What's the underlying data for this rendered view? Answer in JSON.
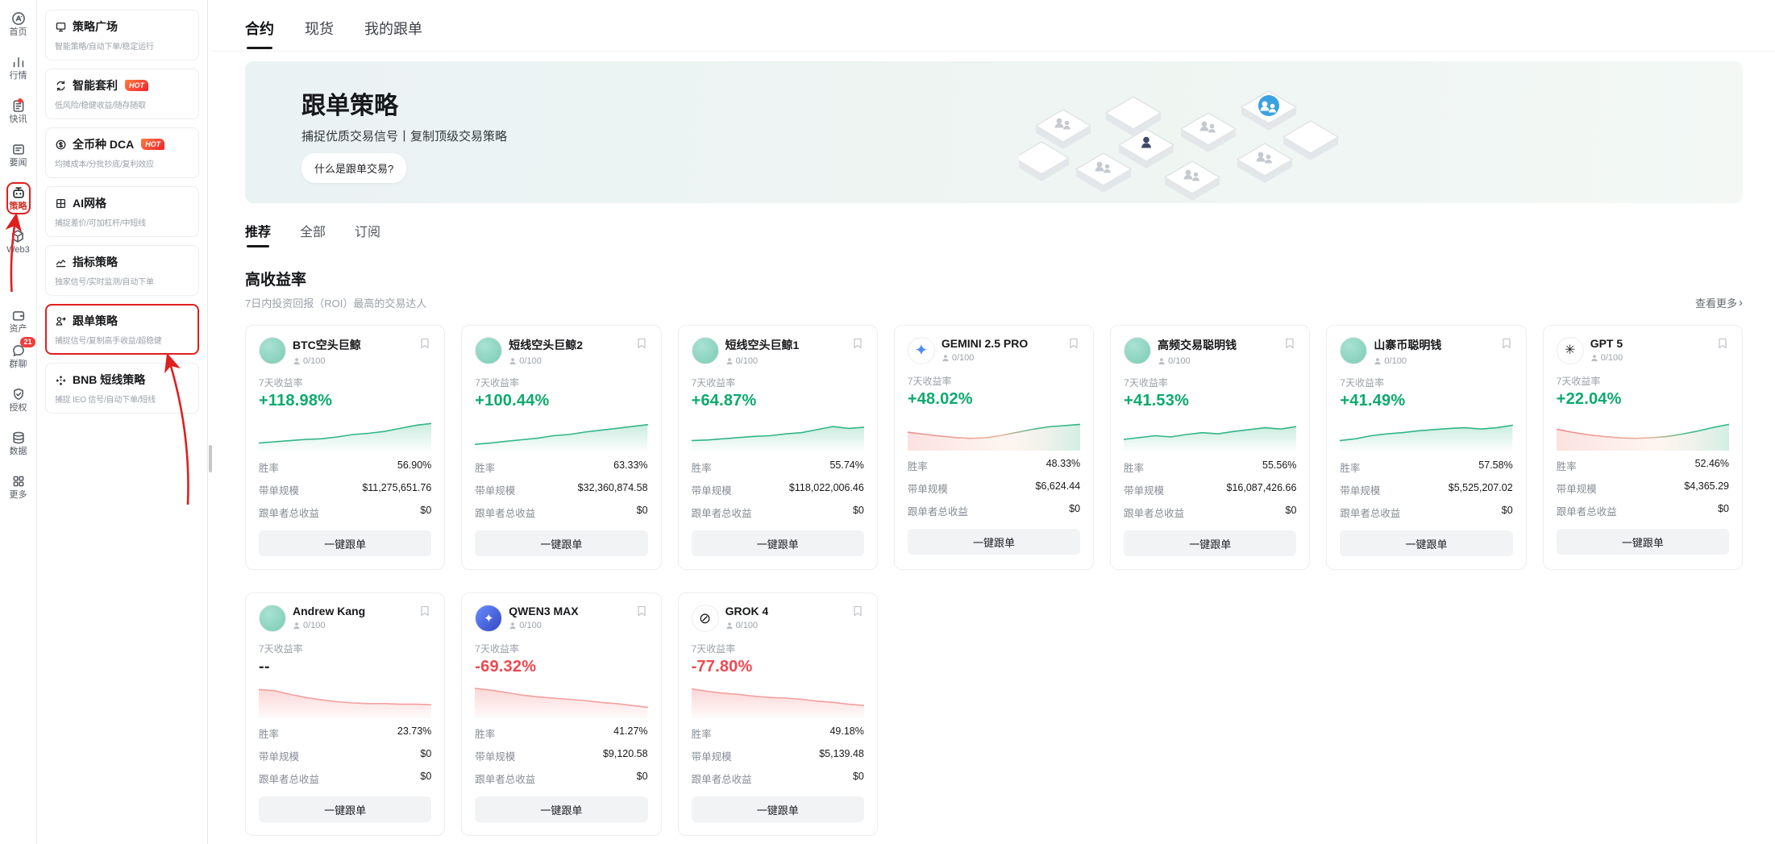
{
  "colors": {
    "accent_green": "#0caa6d",
    "accent_red": "#f0484f",
    "annotation_red": "#e01f1f",
    "hot_badge": "#f5222d"
  },
  "rail": {
    "items": [
      {
        "id": "home",
        "label": "首页",
        "icon": "logo"
      },
      {
        "id": "markets",
        "label": "行情",
        "icon": "markets"
      },
      {
        "id": "news",
        "label": "快讯",
        "icon": "news",
        "badge": "dot"
      },
      {
        "id": "headlines",
        "label": "要闻",
        "icon": "headlines"
      },
      {
        "id": "strategy",
        "label": "策略",
        "icon": "strategy",
        "active": true
      },
      {
        "id": "web3",
        "label": "Web3",
        "icon": "web3"
      },
      {
        "id": "assets",
        "label": "资产",
        "icon": "assets"
      },
      {
        "id": "chat",
        "label": "群聊",
        "icon": "chat",
        "badge": "21"
      },
      {
        "id": "auth",
        "label": "授权",
        "icon": "auth"
      },
      {
        "id": "data",
        "label": "数据",
        "icon": "data"
      },
      {
        "id": "more",
        "label": "更多",
        "icon": "more"
      }
    ]
  },
  "sidebar": {
    "hot_label": "HOT",
    "items": [
      {
        "id": "plaza",
        "title": "策略广场",
        "subtitle": "智能策略/自动下单/稳定运行",
        "icon": "plaza"
      },
      {
        "id": "arbitrage",
        "title": "智能套利",
        "subtitle": "低风险/稳健收益/随存随取",
        "icon": "arbitrage",
        "hot": true
      },
      {
        "id": "dca",
        "title": "全币种 DCA",
        "subtitle": "均摊成本/分批抄底/复利效应",
        "icon": "dca",
        "hot": true
      },
      {
        "id": "ai-grid",
        "title": "AI网格",
        "subtitle": "捕捉差价/可加杠杆/中短线",
        "icon": "grid"
      },
      {
        "id": "indicator",
        "title": "指标策略",
        "subtitle": "独家信号/实时监测/自动下单",
        "icon": "indicator"
      },
      {
        "id": "copy-trading",
        "title": "跟单策略",
        "subtitle": "捕捉信号/复制高手收益/超稳健",
        "icon": "copy",
        "highlighted": true
      },
      {
        "id": "bnb-short",
        "title": "BNB 短线策略",
        "subtitle": "捕捉 IEO 信号/自动下单/短线",
        "icon": "bnb"
      }
    ]
  },
  "header_tabs": [
    {
      "id": "contract",
      "label": "合约",
      "active": true
    },
    {
      "id": "spot",
      "label": "现货"
    },
    {
      "id": "my-copy",
      "label": "我的跟单"
    }
  ],
  "hero": {
    "title": "跟单策略",
    "subtitle": "捕捉优质交易信号丨复制顶级交易策略",
    "button": "什么是跟单交易?"
  },
  "filter_tabs": [
    {
      "id": "recommended",
      "label": "推荐",
      "active": true
    },
    {
      "id": "all",
      "label": "全部"
    },
    {
      "id": "subscribed",
      "label": "订阅"
    }
  ],
  "section": {
    "title": "高收益率",
    "subtitle": "7日内投资回报（ROI）最高的交易达人",
    "more": "查看更多",
    "more_chevron": "›"
  },
  "card_labels": {
    "roi": "7天收益率",
    "win_rate": "胜率",
    "aum": "带单规模",
    "followers_pnl": "跟单者总收益",
    "follow_btn": "一键跟单"
  },
  "cards": [
    {
      "name": "BTC空头巨鲸",
      "slots": "0/100",
      "roi": "+118.98%",
      "roi_color": "green",
      "win_rate": "56.90%",
      "aum": "$11,275,651.76",
      "followers_pnl": "$0",
      "avatar": {
        "bg": "radial-gradient(circle at 35% 32%, #a9e2d2, #7accb4)",
        "glyph": "",
        "color": "#fff",
        "size": 16
      },
      "spark": {
        "trend": "up",
        "points": [
          0.22,
          0.26,
          0.3,
          0.34,
          0.36,
          0.42,
          0.5,
          0.54,
          0.6,
          0.7,
          0.8,
          0.86
        ]
      }
    },
    {
      "name": "短线空头巨鲸2",
      "slots": "0/100",
      "roi": "+100.44%",
      "roi_color": "green",
      "win_rate": "63.33%",
      "aum": "$32,360,874.58",
      "followers_pnl": "$0",
      "avatar": {
        "bg": "radial-gradient(circle at 35% 32%, #a9e2d2, #7accb4)",
        "glyph": "",
        "color": "#fff",
        "size": 16
      },
      "spark": {
        "trend": "up",
        "points": [
          0.18,
          0.22,
          0.28,
          0.33,
          0.38,
          0.46,
          0.5,
          0.58,
          0.64,
          0.7,
          0.76,
          0.82
        ]
      }
    },
    {
      "name": "短线空头巨鲸1",
      "slots": "0/100",
      "roi": "+64.87%",
      "roi_color": "green",
      "win_rate": "55.74%",
      "aum": "$118,022,006.46",
      "followers_pnl": "$0",
      "avatar": {
        "bg": "radial-gradient(circle at 35% 32%, #a9e2d2, #7accb4)",
        "glyph": "",
        "color": "#fff",
        "size": 16
      },
      "spark": {
        "trend": "up",
        "points": [
          0.3,
          0.32,
          0.36,
          0.4,
          0.44,
          0.46,
          0.52,
          0.56,
          0.66,
          0.76,
          0.7,
          0.74
        ]
      }
    },
    {
      "name": "GEMINI 2.5 PRO",
      "slots": "0/100",
      "roi": "+48.02%",
      "roi_color": "green",
      "win_rate": "48.33%",
      "aum": "$6,624.44",
      "followers_pnl": "$0",
      "avatar": {
        "bg": "#ffffff",
        "glyph": "✦",
        "color": "#4b8af8",
        "size": 20
      },
      "spark": {
        "trend": "mixed",
        "points": [
          0.52,
          0.46,
          0.4,
          0.35,
          0.32,
          0.34,
          0.42,
          0.52,
          0.62,
          0.7,
          0.74,
          0.78
        ]
      }
    },
    {
      "name": "高频交易聪明钱",
      "slots": "0/100",
      "roi": "+41.53%",
      "roi_color": "green",
      "win_rate": "55.56%",
      "aum": "$16,087,426.66",
      "followers_pnl": "$0",
      "avatar": {
        "bg": "radial-gradient(circle at 35% 32%, #a9e2d2, #7accb4)",
        "glyph": "",
        "color": "#fff",
        "size": 16
      },
      "spark": {
        "trend": "up",
        "points": [
          0.34,
          0.4,
          0.46,
          0.42,
          0.5,
          0.56,
          0.52,
          0.6,
          0.66,
          0.72,
          0.68,
          0.76
        ]
      }
    },
    {
      "name": "山寨币聪明钱",
      "slots": "0/100",
      "roi": "+41.49%",
      "roi_color": "green",
      "win_rate": "57.58%",
      "aum": "$5,525,207.02",
      "followers_pnl": "$0",
      "avatar": {
        "bg": "radial-gradient(circle at 35% 32%, #a9e2d2, #7accb4)",
        "glyph": "",
        "color": "#fff",
        "size": 16
      },
      "spark": {
        "trend": "up",
        "points": [
          0.3,
          0.36,
          0.46,
          0.52,
          0.56,
          0.62,
          0.66,
          0.7,
          0.72,
          0.68,
          0.72,
          0.8
        ]
      }
    },
    {
      "name": "GPT 5",
      "slots": "0/100",
      "roi": "+22.04%",
      "roi_color": "green",
      "win_rate": "52.46%",
      "aum": "$4,365.29",
      "followers_pnl": "$0",
      "avatar": {
        "bg": "#ffffff",
        "glyph": "✳",
        "color": "#202327",
        "size": 16
      },
      "spark": {
        "trend": "mixed",
        "points": [
          0.62,
          0.52,
          0.44,
          0.38,
          0.34,
          0.32,
          0.34,
          0.38,
          0.46,
          0.56,
          0.68,
          0.78
        ]
      }
    },
    {
      "name": "Andrew Kang",
      "slots": "0/100",
      "roi": "--",
      "roi_color": "neutral",
      "win_rate": "23.73%",
      "aum": "$0",
      "followers_pnl": "$0",
      "avatar": {
        "bg": "radial-gradient(circle at 35% 32%, #a9e2d2, #7accb4)",
        "glyph": "",
        "color": "#fff",
        "size": 16
      },
      "spark": {
        "trend": "down",
        "points": [
          0.86,
          0.82,
          0.7,
          0.6,
          0.52,
          0.46,
          0.42,
          0.4,
          0.4,
          0.38,
          0.38,
          0.36
        ]
      }
    },
    {
      "name": "QWEN3 MAX",
      "slots": "0/100",
      "roi": "-69.32%",
      "roi_color": "red",
      "win_rate": "41.27%",
      "aum": "$9,120.58",
      "followers_pnl": "$0",
      "avatar": {
        "bg": "linear-gradient(135deg,#6a8cff,#3347c2)",
        "glyph": "✦",
        "color": "#ffffff",
        "size": 15
      },
      "spark": {
        "trend": "down",
        "points": [
          0.9,
          0.84,
          0.76,
          0.68,
          0.62,
          0.58,
          0.54,
          0.5,
          0.44,
          0.4,
          0.34,
          0.28
        ]
      }
    },
    {
      "name": "GROK 4",
      "slots": "0/100",
      "roi": "-77.80%",
      "roi_color": "red",
      "win_rate": "49.18%",
      "aum": "$5,139.48",
      "followers_pnl": "$0",
      "avatar": {
        "bg": "#ffffff",
        "glyph": "⊘",
        "color": "#17181a",
        "size": 18
      },
      "spark": {
        "trend": "down",
        "points": [
          0.88,
          0.8,
          0.74,
          0.7,
          0.64,
          0.6,
          0.58,
          0.54,
          0.48,
          0.44,
          0.38,
          0.34
        ]
      }
    }
  ]
}
